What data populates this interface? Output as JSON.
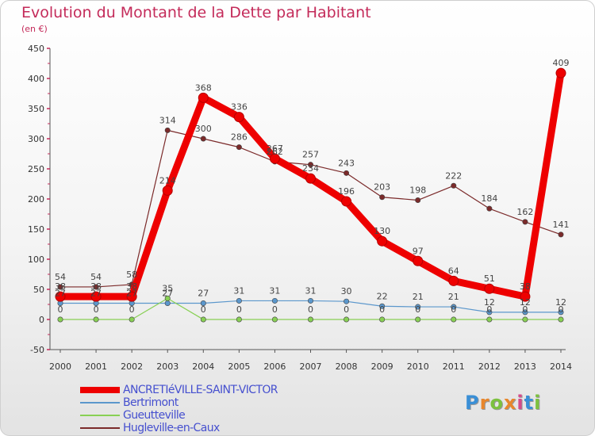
{
  "title": "Evolution du Montant de la Dette par Habitant",
  "subtitle": "(en €)",
  "logo_text": "Proxiti",
  "chart_data": {
    "type": "line",
    "x": [
      "2000",
      "2001",
      "2002",
      "2003",
      "2004",
      "2005",
      "2006",
      "2007",
      "2008",
      "2009",
      "2010",
      "2011",
      "2012",
      "2013",
      "2014"
    ],
    "ylim": [
      -50,
      450
    ],
    "yticks": [
      "-50",
      "0",
      "50",
      "100",
      "150",
      "200",
      "250",
      "300",
      "350",
      "400",
      "450"
    ],
    "grid": false,
    "legend_position": "bottom",
    "series": [
      {
        "name": "ANCRETIéVILLE-SAINT-VICTOR",
        "color": "#ee0000",
        "values": [
          38,
          38,
          38,
          214,
          368,
          336,
          267,
          234,
          196,
          130,
          97,
          64,
          51,
          38,
          409
        ],
        "labels": [
          "38",
          "38",
          "38",
          "214",
          "368",
          "336",
          "267",
          "234",
          "196",
          "130",
          "97",
          "64",
          "51",
          "38",
          "409"
        ]
      },
      {
        "name": "Bertrimont",
        "color": "#5b97cc",
        "values": [
          27,
          27,
          27,
          27,
          27,
          31,
          31,
          31,
          30,
          22,
          21,
          21,
          12,
          12,
          12
        ],
        "labels": [
          "27",
          "27",
          "27",
          "27",
          "27",
          "31",
          "31",
          "31",
          "30",
          "22",
          "21",
          "21",
          "12",
          "12",
          "12"
        ]
      },
      {
        "name": "Gueutteville",
        "color": "#88d054",
        "values": [
          0,
          0,
          0,
          35,
          0,
          0,
          0,
          0,
          0,
          0,
          0,
          0,
          0,
          0,
          0
        ],
        "labels": [
          "0",
          "0",
          "0",
          "35",
          "0",
          "0",
          "0",
          "0",
          "0",
          "0",
          "0",
          "0",
          "0",
          "0",
          "0"
        ]
      },
      {
        "name": "Hugleville-en-Caux",
        "color": "#7b2a2a",
        "values": [
          54,
          54,
          58,
          314,
          300,
          286,
          262,
          257,
          243,
          203,
          198,
          222,
          184,
          162,
          141
        ],
        "labels": [
          "54",
          "54",
          "58",
          "314",
          "300",
          "286",
          "262",
          "257",
          "243",
          "203",
          "198",
          "222",
          "184",
          "162",
          "141"
        ]
      }
    ]
  }
}
